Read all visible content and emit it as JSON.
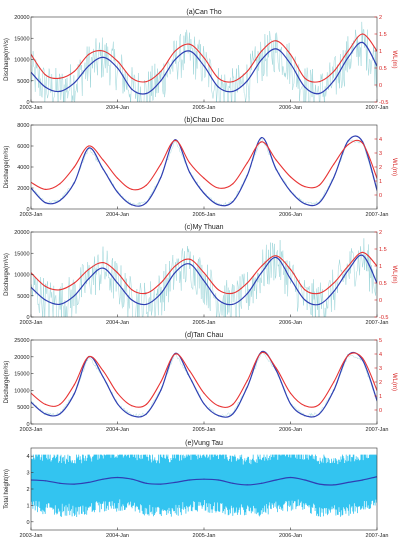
{
  "figure": {
    "x_ticks": [
      "2003-Jan",
      "2004-Jan",
      "2005-Jan",
      "2006-Jan",
      "2007-Jan"
    ],
    "colors": {
      "discharge": "#2f3fb3",
      "wl": "#e83434",
      "raw": "#8fcfd4",
      "tide": "#33c4f0",
      "axis_right": "#d62020",
      "axis_left": "#1a1a1a"
    }
  },
  "chart_data": [
    {
      "type": "line",
      "title": "(a)Can Tho",
      "ylabel": "Discharge(m³/s)",
      "y2label": "WL(m)",
      "ylim": [
        0,
        20000
      ],
      "yticks": [
        "0",
        "5000",
        "10000",
        "15000",
        "20000"
      ],
      "y2lim": [
        -0.5,
        2
      ],
      "y2ticks": [
        "-0.5",
        "0",
        "0.5",
        "1",
        "1.5",
        "2"
      ],
      "x": [
        "2003-01",
        "2003-03",
        "2003-05",
        "2003-07",
        "2003-09",
        "2003-11",
        "2004-01",
        "2004-03",
        "2004-05",
        "2004-07",
        "2004-09",
        "2004-11",
        "2005-01",
        "2005-03",
        "2005-05",
        "2005-07",
        "2005-09",
        "2005-11",
        "2006-01",
        "2006-03",
        "2006-05",
        "2006-07",
        "2006-09",
        "2006-11",
        "2007-01"
      ],
      "series": [
        {
          "role": "discharge",
          "values": [
            7000,
            3500,
            2500,
            4500,
            8500,
            10500,
            8000,
            3000,
            2000,
            5000,
            10000,
            12000,
            8500,
            3500,
            2500,
            5000,
            10000,
            12500,
            9000,
            3500,
            2000,
            5000,
            10500,
            14000,
            8500
          ]
        },
        {
          "role": "wl",
          "values": [
            0.9,
            0.3,
            0.2,
            0.4,
            0.9,
            1.0,
            0.7,
            0.2,
            0.1,
            0.4,
            1.0,
            1.2,
            0.8,
            0.2,
            0.1,
            0.4,
            1.0,
            1.3,
            0.9,
            0.2,
            0.1,
            0.4,
            1.0,
            1.5,
            1.0
          ]
        }
      ]
    },
    {
      "type": "line",
      "title": "(b)Chau Doc",
      "ylabel": "Discharge(m³/s)",
      "y2label": "WL(m)",
      "ylim": [
        0,
        8000
      ],
      "yticks": [
        "0",
        "2000",
        "4000",
        "6000",
        "8000"
      ],
      "y2lim": [
        -1,
        5
      ],
      "y2ticks": [
        "0",
        "1",
        "2",
        "3",
        "4"
      ],
      "x": [
        "2003-01",
        "2003-03",
        "2003-05",
        "2003-07",
        "2003-09",
        "2003-11",
        "2004-01",
        "2004-03",
        "2004-05",
        "2004-07",
        "2004-09",
        "2004-11",
        "2005-01",
        "2005-03",
        "2005-05",
        "2005-07",
        "2005-09",
        "2005-11",
        "2006-01",
        "2006-03",
        "2006-05",
        "2006-07",
        "2006-09",
        "2006-11",
        "2007-01"
      ],
      "series": [
        {
          "role": "discharge",
          "values": [
            2000,
            600,
            800,
            2500,
            5800,
            3800,
            1600,
            400,
            600,
            3000,
            6600,
            3500,
            1500,
            400,
            700,
            3200,
            6800,
            3800,
            1700,
            500,
            600,
            3000,
            6500,
            6400,
            1800
          ]
        },
        {
          "role": "wl",
          "values": [
            0.9,
            0.4,
            0.8,
            2.0,
            3.5,
            2.5,
            1.2,
            0.4,
            0.7,
            2.2,
            3.9,
            2.3,
            1.2,
            0.5,
            0.8,
            2.3,
            3.8,
            2.5,
            1.3,
            0.6,
            0.7,
            2.2,
            3.6,
            3.7,
            1.2
          ]
        }
      ]
    },
    {
      "type": "line",
      "title": "(c)My Thuan",
      "ylabel": "Discharge(m³/s)",
      "y2label": "WL(m)",
      "ylim": [
        0,
        20000
      ],
      "yticks": [
        "0",
        "5000",
        "10000",
        "15000",
        "20000"
      ],
      "y2lim": [
        -0.5,
        2
      ],
      "y2ticks": [
        "-0.5",
        "0",
        "0.5",
        "1",
        "1.5",
        "2"
      ],
      "x": [
        "2003-01",
        "2003-03",
        "2003-05",
        "2003-07",
        "2003-09",
        "2003-11",
        "2004-01",
        "2004-03",
        "2004-05",
        "2004-07",
        "2004-09",
        "2004-11",
        "2005-01",
        "2005-03",
        "2005-05",
        "2005-07",
        "2005-09",
        "2005-11",
        "2006-01",
        "2006-03",
        "2006-05",
        "2006-07",
        "2006-09",
        "2006-11",
        "2007-01"
      ],
      "series": [
        {
          "role": "discharge",
          "values": [
            7000,
            4000,
            3000,
            5000,
            9000,
            11500,
            8000,
            4000,
            3000,
            5500,
            10500,
            12500,
            8500,
            4000,
            3000,
            5500,
            10500,
            14000,
            9000,
            4000,
            3000,
            6000,
            11000,
            14500,
            8000
          ]
        },
        {
          "role": "wl",
          "values": [
            0.8,
            0.4,
            0.3,
            0.5,
            0.9,
            1.1,
            0.8,
            0.3,
            0.2,
            0.5,
            1.0,
            1.2,
            0.8,
            0.3,
            0.2,
            0.5,
            1.0,
            1.3,
            0.9,
            0.3,
            0.2,
            0.5,
            1.0,
            1.4,
            1.0
          ]
        }
      ]
    },
    {
      "type": "line",
      "title": "(d)Tan Chau",
      "ylabel": "Discharge(m³/s)",
      "y2label": "WL(m)",
      "ylim": [
        0,
        25000
      ],
      "yticks": [
        "0",
        "5000",
        "10000",
        "15000",
        "20000",
        "25000"
      ],
      "y2lim": [
        -1,
        5
      ],
      "y2ticks": [
        "0",
        "1",
        "2",
        "3",
        "4",
        "5"
      ],
      "x": [
        "2003-01",
        "2003-03",
        "2003-05",
        "2003-07",
        "2003-09",
        "2003-11",
        "2004-01",
        "2004-03",
        "2004-05",
        "2004-07",
        "2004-09",
        "2004-11",
        "2005-01",
        "2005-03",
        "2005-05",
        "2005-07",
        "2005-09",
        "2005-11",
        "2006-01",
        "2006-03",
        "2006-05",
        "2006-07",
        "2006-09",
        "2006-11",
        "2007-01"
      ],
      "series": [
        {
          "role": "discharge",
          "values": [
            6500,
            3000,
            3000,
            9000,
            20000,
            14000,
            6000,
            2500,
            3000,
            10000,
            21000,
            14000,
            6000,
            2500,
            3000,
            11000,
            21500,
            16000,
            6000,
            2500,
            3000,
            10000,
            20500,
            19000,
            7000
          ]
        },
        {
          "role": "wl",
          "values": [
            1.2,
            0.4,
            0.4,
            1.8,
            3.8,
            2.8,
            1.2,
            0.3,
            0.4,
            2.0,
            4.0,
            2.8,
            1.2,
            0.3,
            0.4,
            2.1,
            4.1,
            3.0,
            1.2,
            0.3,
            0.4,
            2.0,
            3.9,
            3.7,
            1.4
          ]
        }
      ]
    },
    {
      "type": "line",
      "title": "(e)Vung Tau",
      "ylabel": "Total height(m)",
      "ylim": [
        -0.5,
        4.5
      ],
      "yticks": [
        "0",
        "1",
        "2",
        "3",
        "4"
      ],
      "x": [
        "2003-01",
        "2003-03",
        "2003-05",
        "2003-07",
        "2003-09",
        "2003-11",
        "2004-01",
        "2004-03",
        "2004-05",
        "2004-07",
        "2004-09",
        "2004-11",
        "2005-01",
        "2005-03",
        "2005-05",
        "2005-07",
        "2005-09",
        "2005-11",
        "2006-01",
        "2006-03",
        "2006-05",
        "2006-07",
        "2006-09",
        "2006-11",
        "2007-01"
      ],
      "tide_range": [
        0.2,
        4.1
      ],
      "series": [
        {
          "role": "mean",
          "values": [
            2.55,
            2.5,
            2.35,
            2.3,
            2.4,
            2.6,
            2.7,
            2.6,
            2.35,
            2.3,
            2.4,
            2.55,
            2.6,
            2.55,
            2.35,
            2.25,
            2.35,
            2.55,
            2.7,
            2.55,
            2.3,
            2.25,
            2.4,
            2.55,
            2.75
          ]
        }
      ]
    }
  ]
}
